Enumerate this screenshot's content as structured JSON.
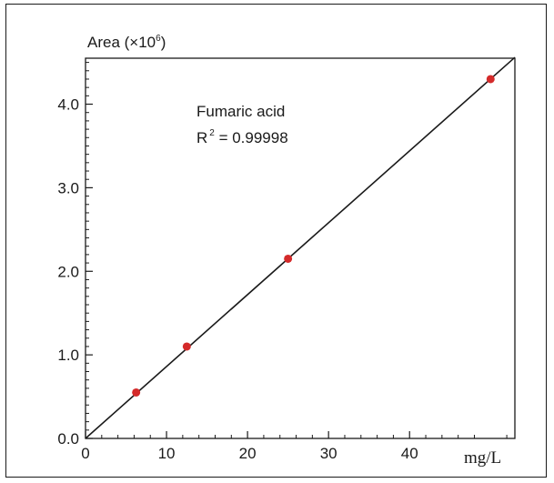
{
  "chart_data": {
    "type": "scatter",
    "ylabel": "Area (×10",
    "ylabel_sup": "6",
    "ylabel_close": ")",
    "xlabel": "mg/L",
    "xlim": [
      0,
      53
    ],
    "ylim": [
      0,
      4.55
    ],
    "xticks": [
      0,
      10,
      20,
      30,
      40
    ],
    "xtick_labels": [
      "0",
      "10",
      "20",
      "30",
      "40"
    ],
    "yticks": [
      0.0,
      1.0,
      2.0,
      3.0,
      4.0
    ],
    "ytick_labels": [
      "0.0",
      "1.0",
      "2.0",
      "3.0",
      "4.0"
    ],
    "series": [
      {
        "x": [
          6.25,
          12.5,
          25,
          50
        ],
        "y": [
          0.55,
          1.1,
          2.15,
          4.3
        ],
        "color": "#d42a2a"
      }
    ],
    "fit_line": {
      "x": [
        0,
        53
      ],
      "y": [
        0,
        4.56
      ],
      "color": "#1a1a1a"
    },
    "annotation": {
      "compound": "Fumaric acid",
      "r_label": "R",
      "r_sup": "2",
      "r_value": " = 0.99998"
    },
    "grid": false,
    "legend": "none"
  }
}
